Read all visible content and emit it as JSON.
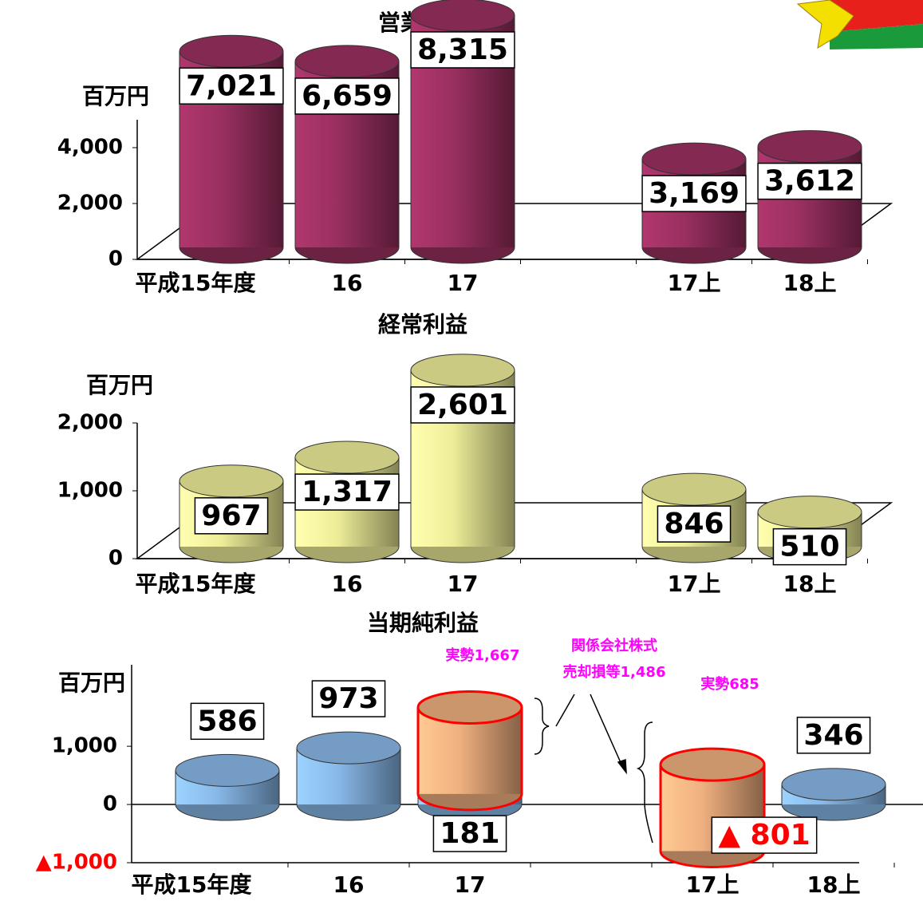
{
  "chart_data": [
    {
      "type": "bar",
      "title": "営業収益",
      "ylabel": "百万円",
      "categories": [
        "平成15年度",
        "16",
        "17",
        null,
        "17上",
        "18上"
      ],
      "values": [
        7021,
        6659,
        8315,
        null,
        3169,
        3612
      ],
      "value_labels": [
        "7,021",
        "6,659",
        "8,315",
        null,
        "3,169",
        "3,612"
      ],
      "color": "#9a3060",
      "ylim": [
        0,
        5000
      ],
      "yticks": [
        0,
        {
          "value": 2000,
          "label": "2,000"
        },
        {
          "value": 4000,
          "label": "4,000"
        }
      ]
    },
    {
      "type": "bar",
      "title": "経常利益",
      "ylabel": "百万円",
      "categories": [
        "平成15年度",
        "16",
        "17",
        null,
        "17上",
        "18上"
      ],
      "values": [
        967,
        1317,
        2601,
        null,
        846,
        510
      ],
      "value_labels": [
        "967",
        "1,317",
        "2,601",
        null,
        "846",
        "510"
      ],
      "color": "#eeee99",
      "ylim": [
        0,
        2000
      ],
      "yticks": [
        0,
        {
          "value": 1000,
          "label": "1,000"
        },
        {
          "value": 2000,
          "label": "2,000"
        }
      ]
    },
    {
      "type": "bar",
      "title": "当期純利益",
      "ylabel": "百万円",
      "categories": [
        "平成15年度",
        "16",
        "17",
        null,
        "17上",
        "18上"
      ],
      "series": [
        {
          "color": "#88b8e8",
          "values": [
            586,
            973,
            181,
            null,
            -801,
            346
          ],
          "value_labels": [
            "586",
            "973",
            "181",
            null,
            "▲ 801",
            "346"
          ]
        },
        {
          "color": "#f0b080",
          "outline": "#ff0000",
          "values": [
            null,
            null,
            1486,
            null,
            1486,
            null
          ]
        }
      ],
      "negative_color": "#ff0000",
      "ylim": [
        -1000,
        2400
      ],
      "yticks": [
        {
          "value": -1000,
          "label": "▲1,000"
        },
        0,
        {
          "value": 1000,
          "label": "1,000"
        }
      ],
      "annotations": [
        "実勢1,667",
        "関係会社株式",
        "売却損等1,486",
        "実勢685"
      ]
    }
  ]
}
